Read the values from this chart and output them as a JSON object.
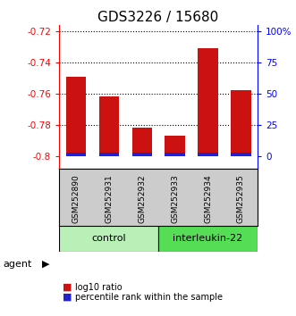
{
  "title": "GDS3226 / 15680",
  "samples": [
    "GSM252890",
    "GSM252931",
    "GSM252932",
    "GSM252933",
    "GSM252934",
    "GSM252935"
  ],
  "log10_ratio": [
    -0.749,
    -0.762,
    -0.782,
    -0.787,
    -0.731,
    -0.758
  ],
  "percentile_rank": [
    2.5,
    2.5,
    2.5,
    2.5,
    2.5,
    2.5
  ],
  "groups": [
    {
      "label": "control",
      "indices": [
        0,
        1,
        2
      ],
      "color": "#b8f0b8"
    },
    {
      "label": "interleukin-22",
      "indices": [
        3,
        4,
        5
      ],
      "color": "#55dd55"
    }
  ],
  "ylim_left": [
    -0.808,
    -0.716
  ],
  "yticks_left": [
    -0.8,
    -0.78,
    -0.76,
    -0.74,
    -0.72
  ],
  "ytick_left_labels": [
    "-0.8",
    "-0.78",
    "-0.76",
    "-0.74",
    "-0.72"
  ],
  "yticks_right_vals": [
    0,
    25,
    50,
    75,
    100
  ],
  "yticks_right_labels": [
    "0",
    "25",
    "50",
    "75",
    "100%"
  ],
  "bar_base": -0.8,
  "bar_color_red": "#cc1111",
  "bar_color_blue": "#2222cc",
  "blue_bar_height": 0.002,
  "bar_width": 0.6,
  "group_label": "agent",
  "legend_red": "log10 ratio",
  "legend_blue": "percentile rank within the sample",
  "title_fontsize": 11,
  "tick_fontsize": 7.5,
  "sample_fontsize": 6.5,
  "group_fontsize": 8,
  "sample_area_color": "#cccccc",
  "left_axis_color": "red",
  "right_axis_color": "blue",
  "background_color": "#ffffff"
}
